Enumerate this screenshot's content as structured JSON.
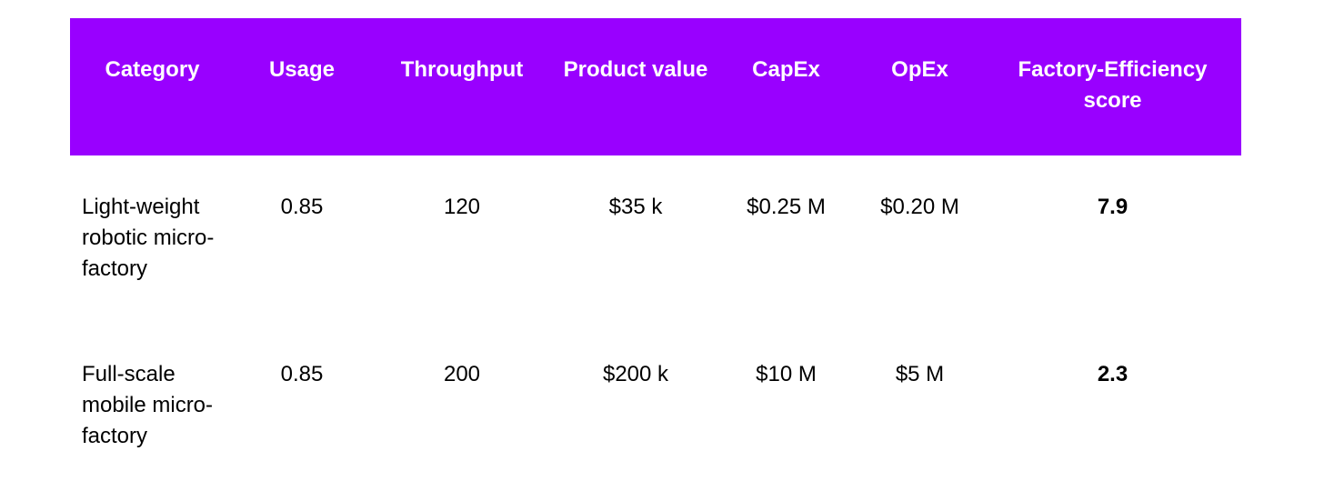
{
  "colors": {
    "header_background": "#9900ff",
    "header_text": "#ffffff",
    "body_text": "#000000"
  },
  "table": {
    "headers": [
      "Category",
      "Usage",
      "Throughput",
      "Product value",
      "CapEx",
      "OpEx",
      "Factory-Efficiency score"
    ],
    "rows": [
      {
        "category": "Light-weight robotic micro-factory",
        "usage": "0.85",
        "throughput": "120",
        "product_value": "$35 k",
        "capex": "$0.25 M",
        "opex": "$0.20 M",
        "score": "7.9"
      },
      {
        "category": "Full-scale mobile micro-factory",
        "usage": "0.85",
        "throughput": "200",
        "product_value": "$200 k",
        "capex": "$10 M",
        "opex": "$5 M",
        "score": "2.3"
      }
    ]
  }
}
